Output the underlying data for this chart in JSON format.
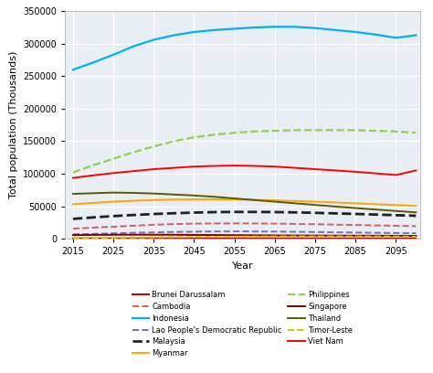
{
  "years": [
    2015,
    2020,
    2025,
    2030,
    2035,
    2040,
    2045,
    2050,
    2055,
    2060,
    2065,
    2070,
    2075,
    2080,
    2085,
    2090,
    2095,
    2100
  ],
  "series": {
    "Brunei Darussalam": {
      "values": [
        430,
        460,
        490,
        510,
        530,
        540,
        545,
        545,
        540,
        530,
        515,
        500,
        480,
        460,
        440,
        420,
        405,
        390
      ],
      "color": "#c00000",
      "linestyle": "solid",
      "linewidth": 1.4
    },
    "Cambodia": {
      "values": [
        15500,
        17000,
        18500,
        20000,
        21500,
        22500,
        23200,
        23500,
        23600,
        23500,
        23200,
        22800,
        22300,
        21700,
        21100,
        20500,
        19900,
        19300
      ],
      "color": "#d06060",
      "linestyle": "dashed",
      "linewidth": 1.4
    },
    "Indonesia": {
      "values": [
        260000,
        271000,
        283000,
        296000,
        306000,
        313000,
        318000,
        321000,
        323000,
        325000,
        326000,
        326000,
        324000,
        321000,
        318000,
        314000,
        309000,
        313000
      ],
      "color": "#00b0f0",
      "linestyle": "solid",
      "linewidth": 1.6
    },
    "Lao People's Democratic Republic": {
      "values": [
        6800,
        7500,
        8300,
        9100,
        9800,
        10400,
        10900,
        11200,
        11300,
        11200,
        11000,
        10700,
        10300,
        9900,
        9500,
        9100,
        8700,
        8400
      ],
      "color": "#7070c0",
      "linestyle": "dashed",
      "linewidth": 1.4
    },
    "Malaysia": {
      "values": [
        30500,
        32800,
        34800,
        36500,
        38000,
        39200,
        40200,
        40900,
        41200,
        41200,
        41000,
        40500,
        39800,
        39000,
        38100,
        37200,
        36200,
        35300
      ],
      "color": "#202020",
      "linestyle": "dashed",
      "linewidth": 2.0
    },
    "Myanmar": {
      "values": [
        53000,
        55000,
        57000,
        58500,
        59500,
        60200,
        60500,
        60500,
        60300,
        59800,
        59000,
        58000,
        57000,
        55800,
        54500,
        53200,
        51800,
        50500
      ],
      "color": "#ffa500",
      "linestyle": "solid",
      "linewidth": 1.4
    },
    "Philippines": {
      "values": [
        102000,
        113000,
        123000,
        133000,
        142000,
        150000,
        156000,
        160000,
        163000,
        165000,
        166000,
        167000,
        167000,
        167000,
        167000,
        166000,
        165000,
        163000
      ],
      "color": "#92d050",
      "linestyle": "dashed",
      "linewidth": 1.6
    },
    "Singapore": {
      "values": [
        5600,
        5900,
        6100,
        6200,
        6200,
        6100,
        5900,
        5700,
        5500,
        5300,
        5100,
        5000,
        4900,
        4800,
        4700,
        4600,
        4500,
        4400
      ],
      "color": "#7b0000",
      "linestyle": "solid",
      "linewidth": 1.4
    },
    "Thailand": {
      "values": [
        69000,
        70000,
        71000,
        70500,
        69500,
        68000,
        66500,
        64500,
        62000,
        59500,
        57000,
        54500,
        52000,
        49500,
        47200,
        44900,
        42700,
        40500
      ],
      "color": "#595900",
      "linestyle": "solid",
      "linewidth": 1.4
    },
    "Timor-Leste": {
      "values": [
        1200,
        1400,
        1600,
        1900,
        2200,
        2500,
        2800,
        3100,
        3300,
        3500,
        3600,
        3700,
        3700,
        3700,
        3600,
        3500,
        3400,
        3200
      ],
      "color": "#c8c800",
      "linestyle": "dashed",
      "linewidth": 1.4
    },
    "Viet Nam": {
      "values": [
        93500,
        97500,
        101000,
        104000,
        107000,
        109000,
        111000,
        112000,
        112500,
        112000,
        111000,
        109000,
        107000,
        105000,
        103000,
        100500,
        98000,
        105000
      ],
      "color": "#ff0000",
      "linestyle": "solid",
      "linewidth": 1.4
    }
  },
  "xlabel": "Year",
  "ylabel": "Total population (Thousands)",
  "ylim": [
    0,
    350000
  ],
  "yticks": [
    0,
    50000,
    100000,
    150000,
    200000,
    250000,
    300000,
    350000
  ],
  "xticks": [
    2015,
    2025,
    2035,
    2045,
    2055,
    2065,
    2075,
    2085,
    2095
  ],
  "plot_bg_color": "#e8eef4",
  "fig_bg_color": "#ffffff",
  "grid_color": "#ffffff"
}
